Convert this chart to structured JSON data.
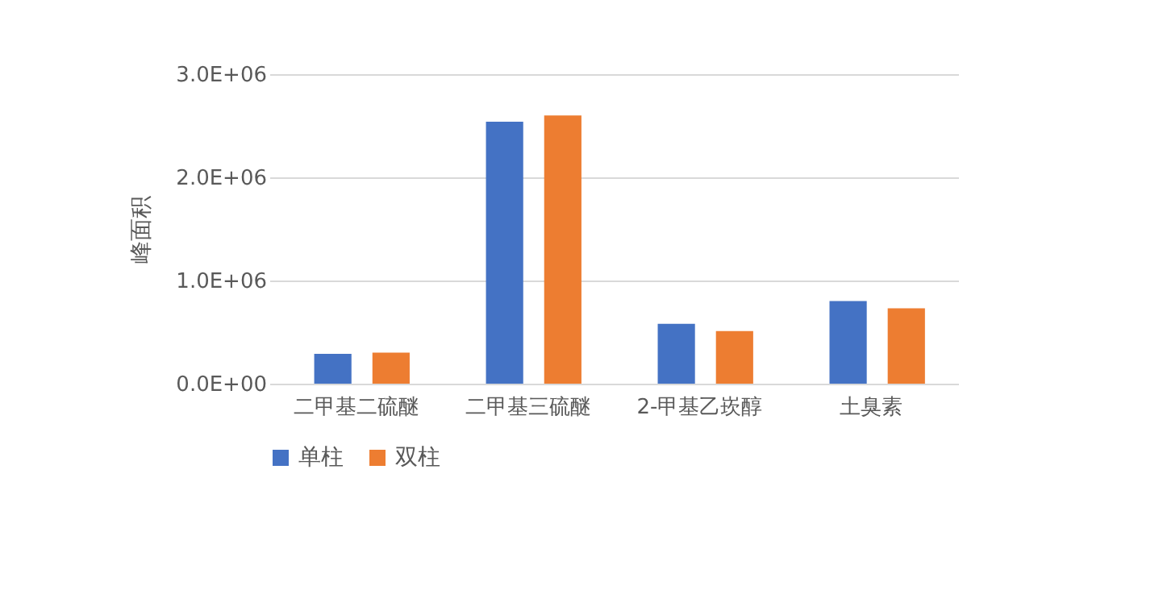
{
  "chart_data": {
    "type": "bar",
    "ylabel": "峰面积",
    "categories": [
      "二甲基二硫醚",
      "二甲基三硫醚",
      "2-甲基乙崁醇",
      "土臭素"
    ],
    "series": [
      {
        "name": "单柱",
        "color": "#4472c4",
        "values": [
          290000,
          2540000,
          580000,
          800000
        ]
      },
      {
        "name": "双柱",
        "color": "#ed7d31",
        "values": [
          300000,
          2600000,
          510000,
          730000
        ]
      }
    ],
    "ylim": [
      0,
      3000000
    ],
    "yticks": [
      {
        "value": 0,
        "label": "0.0E+00"
      },
      {
        "value": 1000000,
        "label": "1.0E+06"
      },
      {
        "value": 2000000,
        "label": "2.0E+06"
      },
      {
        "value": 3000000,
        "label": "3.0E+06"
      }
    ],
    "grid": "y",
    "legend": "bottom"
  }
}
